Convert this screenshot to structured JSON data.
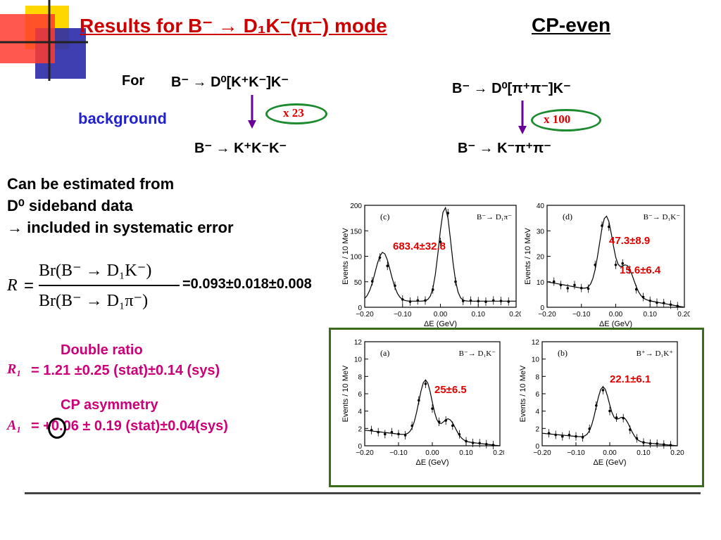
{
  "slide": {
    "title": "Results for  B⁻ → D₁K⁻(π⁻) mode",
    "cp_label": "CP-even"
  },
  "decay_left": {
    "for_label": "For",
    "top": "B⁻ → D⁰[K⁺K⁻]K⁻",
    "factor": "x 23",
    "bottom": "B⁻ → K⁺K⁻K⁻",
    "background_label": "background"
  },
  "decay_right": {
    "top": "B⁻ → D⁰[π⁺π⁻]K⁻",
    "factor": "x 100",
    "bottom": "B⁻ → K⁻π⁺π⁻"
  },
  "estimate": {
    "line1": "Can be estimated from",
    "line2": "D⁰ sideband data",
    "line3": "→ included in systematic error"
  },
  "ratio": {
    "symbol": "R",
    "numerator": "Br(B⁻ → D₁K⁻)",
    "denominator": "Br(B⁻ → D₁π⁻)",
    "value": "=0.093±0.018±0.008"
  },
  "double_ratio": {
    "heading": "Double ratio",
    "symbol": "R₁",
    "value": "= 1.21 ±0.25 (stat)±0.14 (sys)"
  },
  "cp_asym": {
    "heading": "CP asymmetry",
    "symbol": "A₁",
    "value": "= +0.06 ± 0.19 (stat)±0.04(sys)"
  },
  "plots": {
    "ylabel": "Events / 10 MeV",
    "xlabel": "ΔE (GeV)",
    "xticks": [
      "−0.20",
      "−0.10",
      "0.00",
      "0.10",
      "0.20"
    ],
    "c": {
      "tag": "(c)",
      "decay": "B⁻→ D₁π⁻",
      "yticks": [
        "0",
        "50",
        "100",
        "150",
        "200"
      ],
      "label": "683.4±32.8"
    },
    "d": {
      "tag": "(d)",
      "decay": "B⁻→ D₁K⁻",
      "yticks": [
        "0",
        "10",
        "20",
        "30",
        "40"
      ],
      "label1": "47.3±8.9",
      "label2": "15.6±6.4"
    },
    "a": {
      "tag": "(a)",
      "decay": "B⁻→ D₁K⁻",
      "yticks": [
        "0",
        "2",
        "4",
        "6",
        "8",
        "10",
        "12"
      ],
      "label": "25±6.5"
    },
    "b": {
      "tag": "(b)",
      "decay": "B⁺→ D₁K⁺",
      "yticks": [
        "0",
        "2",
        "4",
        "6",
        "8",
        "10",
        "12"
      ],
      "label": "22.1±6.1"
    }
  }
}
